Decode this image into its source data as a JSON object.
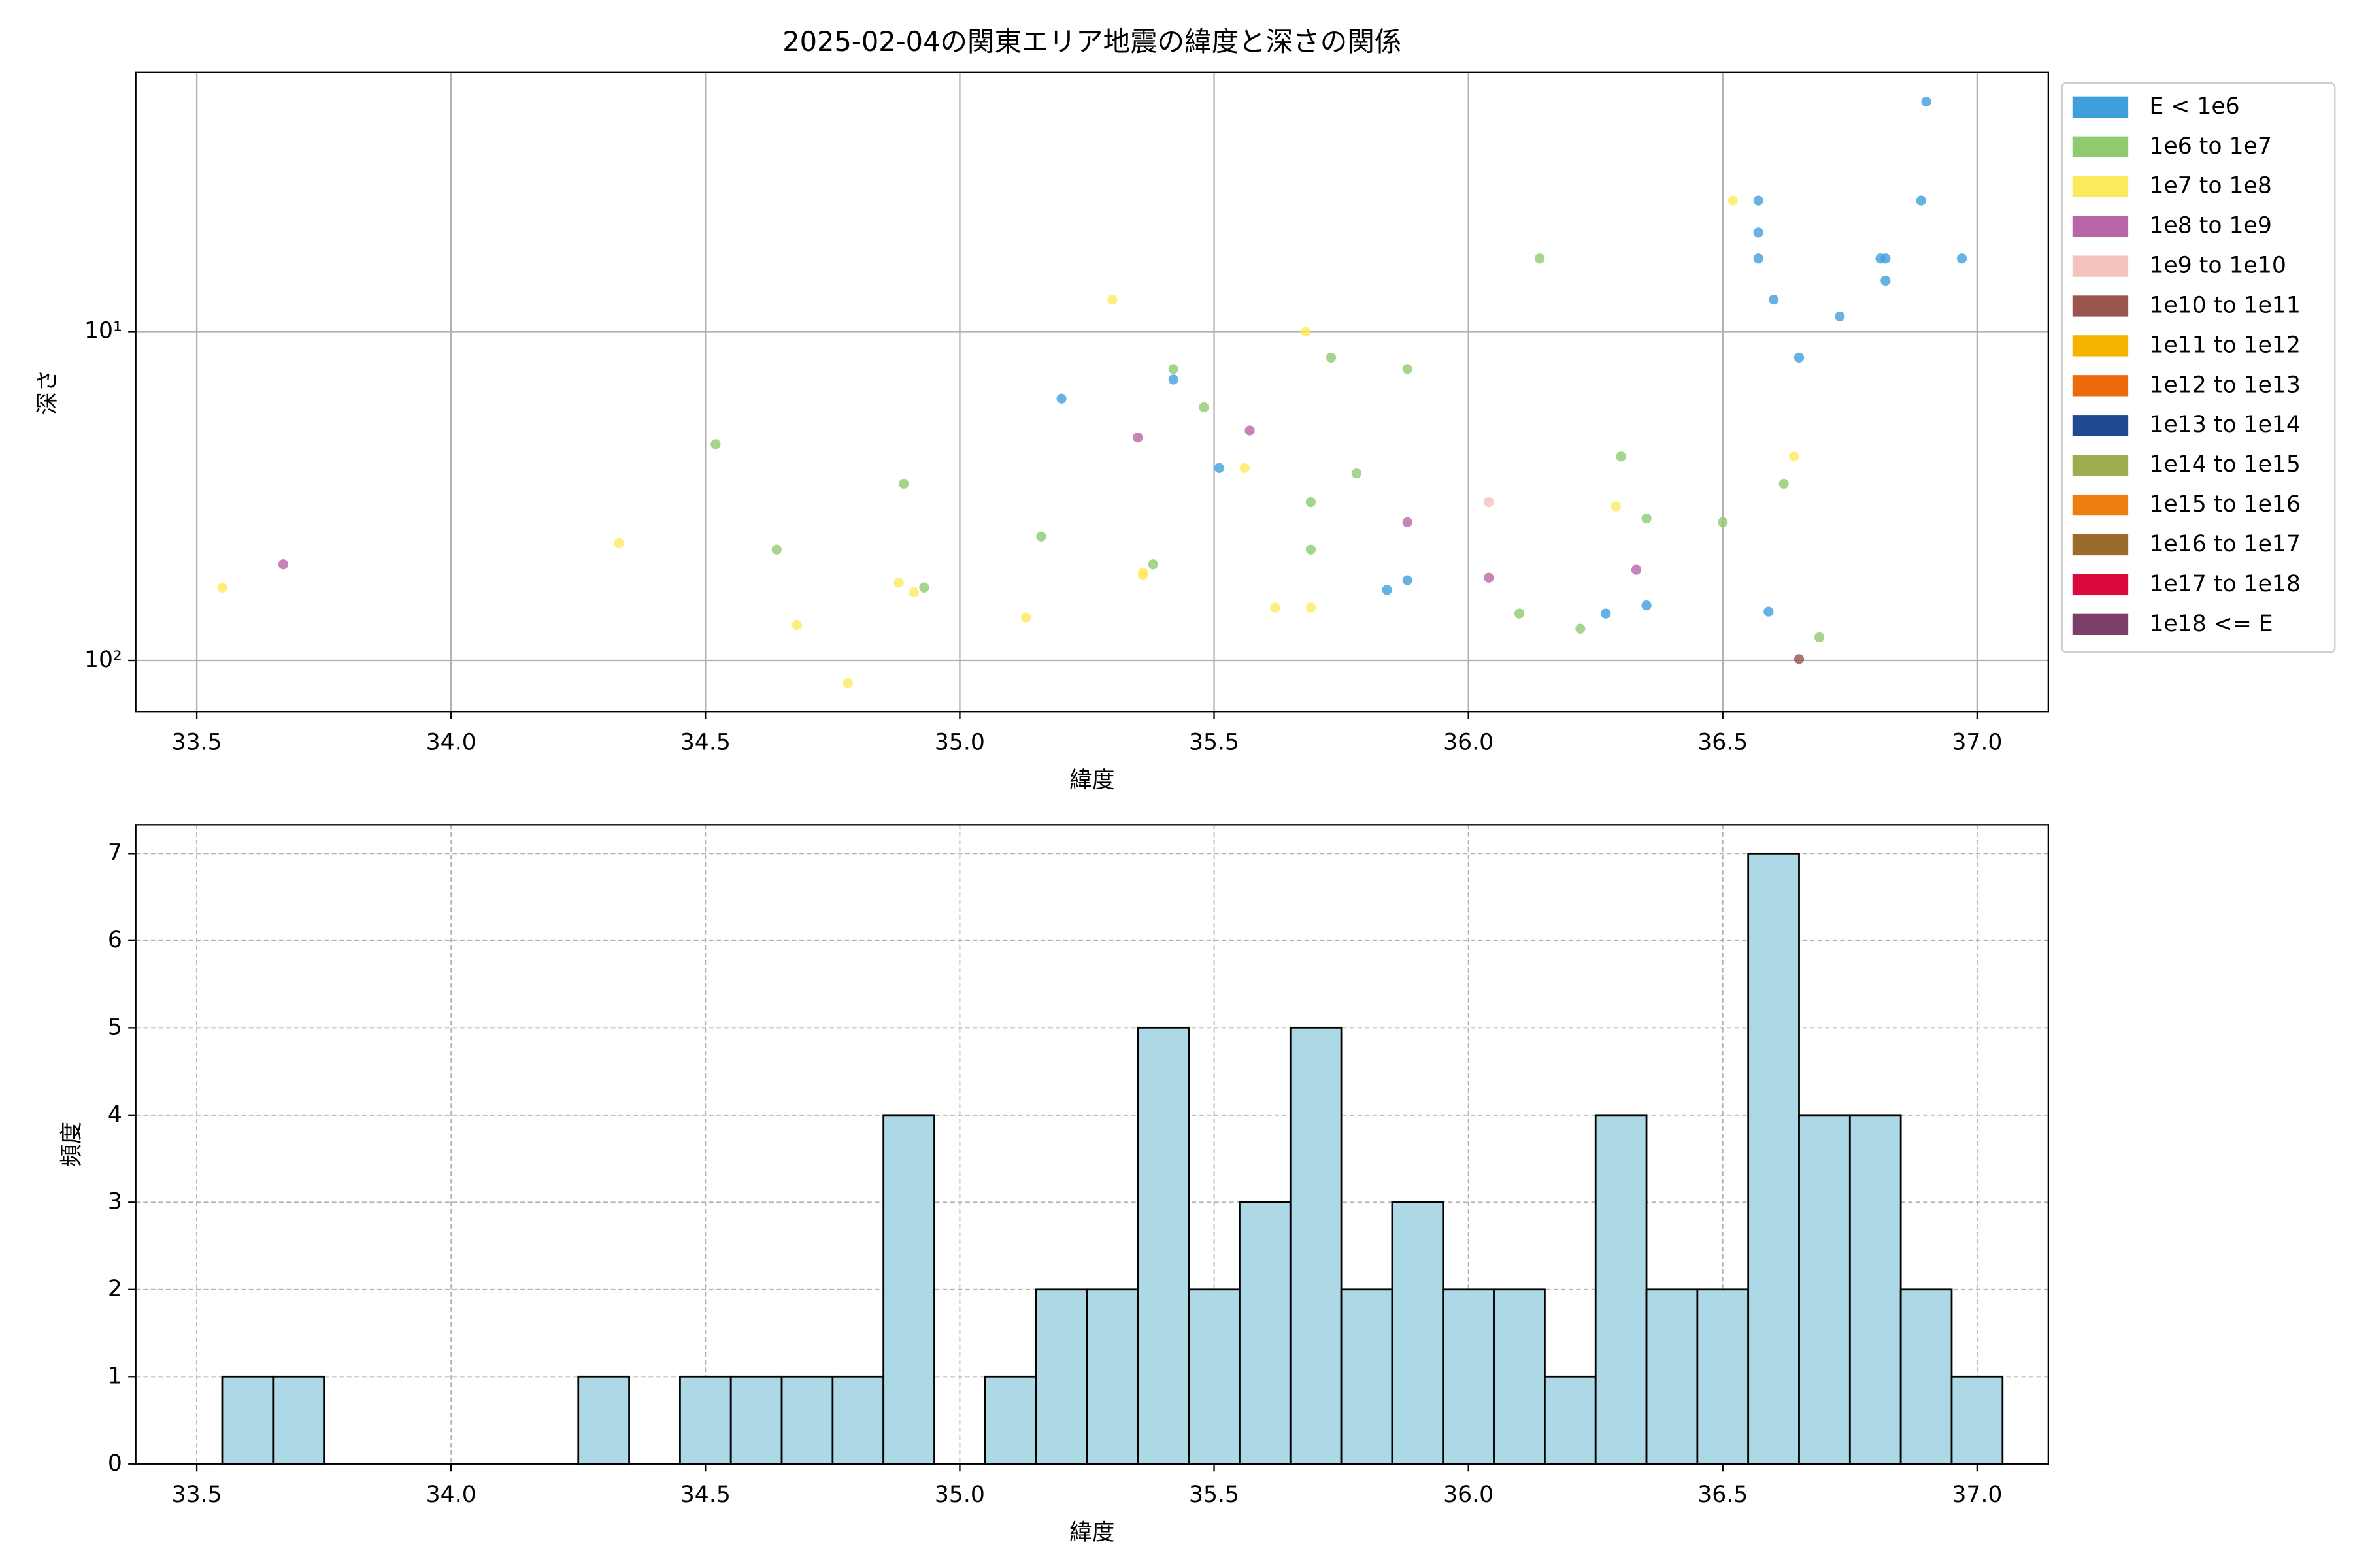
{
  "chart_data": [
    {
      "type": "scatter",
      "title": "2025-02-04の関東エリア地震の緯度と深さの関係",
      "xlabel": "緯度",
      "ylabel": "深さ",
      "yscale": "log",
      "grid": "solid",
      "legend": "outside-right",
      "xlim": [
        33.38,
        37.14
      ],
      "ylim": [
        143,
        1.63
      ],
      "xticks": [
        33.5,
        {
          "value": 34,
          "label": "34.0"
        },
        34.5,
        {
          "value": 35,
          "label": "35.0"
        },
        35.5,
        {
          "value": 36,
          "label": "36.0"
        },
        36.5,
        {
          "value": 37,
          "label": "37.0"
        }
      ],
      "yticks": [
        {
          "value": 10,
          "label": "10¹"
        },
        {
          "value": 100,
          "label": "10²"
        }
      ],
      "series": [
        {
          "name": "E < 1e6",
          "color": "#3e9fdc",
          "x": [
            36.9,
            36.57,
            36.89,
            36.57,
            36.57,
            36.81,
            36.82,
            36.97,
            36.82,
            36.6,
            36.73,
            36.65,
            35.42,
            35.2,
            35.51,
            35.84,
            35.88,
            36.27,
            36.35,
            36.59
          ],
          "values": [
            2,
            4,
            4,
            5,
            6,
            6,
            6,
            6,
            7,
            8,
            9,
            12,
            14,
            16,
            26,
            61,
            57,
            72,
            68,
            71
          ]
        },
        {
          "name": "1e6 to 1e7",
          "color": "#8fc970",
          "x": [
            36.14,
            35.42,
            35.73,
            35.88,
            35.48,
            34.52,
            34.89,
            36.3,
            36.62,
            35.78,
            35.69,
            36.35,
            36.5,
            35.16,
            34.64,
            35.69,
            35.38,
            34.93,
            36.1,
            36.22,
            36.69
          ],
          "values": [
            6,
            13,
            12,
            13,
            17,
            22,
            29,
            24,
            29,
            27,
            33,
            37,
            38,
            42,
            46,
            46,
            51,
            60,
            72,
            80,
            85
          ]
        },
        {
          "name": "1e7 to 1e8",
          "color": "#fcea5c",
          "x": [
            36.52,
            35.3,
            35.68,
            35.56,
            36.64,
            36.29,
            34.33,
            33.55,
            35.36,
            35.36,
            34.88,
            34.91,
            34.68,
            35.13,
            35.62,
            35.69,
            34.78
          ],
          "values": [
            4,
            8,
            10,
            26,
            24,
            34,
            44,
            60,
            54,
            55,
            58,
            62,
            78,
            74,
            69,
            69,
            117
          ]
        },
        {
          "name": "1e8 to 1e9",
          "color": "#b767a8",
          "x": [
            33.67,
            35.35,
            35.57,
            35.88,
            36.04,
            36.33
          ],
          "values": [
            51,
            21,
            20,
            38,
            56,
            53
          ]
        },
        {
          "name": "1e9 to 1e10",
          "color": "#f4c2bc",
          "x": [
            36.04
          ],
          "values": [
            33
          ]
        },
        {
          "name": "1e10 to 1e11",
          "color": "#9a544e",
          "x": [
            36.65
          ],
          "values": [
            99
          ]
        },
        {
          "name": "1e11 to 1e12",
          "color": "#f6b200",
          "x": [],
          "values": []
        },
        {
          "name": "1e12 to 1e13",
          "color": "#ee6a0f",
          "x": [],
          "values": []
        },
        {
          "name": "1e13 to 1e14",
          "color": "#1f4a92",
          "x": [],
          "values": []
        },
        {
          "name": "1e14 to 1e15",
          "color": "#9ead50",
          "x": [],
          "values": []
        },
        {
          "name": "1e15 to 1e16",
          "color": "#ef7d11",
          "x": [],
          "values": []
        },
        {
          "name": "1e16 to 1e17",
          "color": "#9a6b2b",
          "x": [],
          "values": []
        },
        {
          "name": "1e17 to 1e18",
          "color": "#dc0a3c",
          "x": [],
          "values": []
        },
        {
          "name": "1e18 <= E",
          "color": "#7a3e68",
          "x": [],
          "values": []
        }
      ]
    },
    {
      "type": "histogram",
      "xlabel": "緯度",
      "ylabel": "頻度",
      "grid": "dashed",
      "color": "#add8e6",
      "edgecolor": "#000000",
      "xlim": [
        33.38,
        37.14
      ],
      "ylim": [
        0,
        7.33
      ],
      "xticks": [
        33.5,
        {
          "value": 34,
          "label": "34.0"
        },
        34.5,
        {
          "value": 35,
          "label": "35.0"
        },
        35.5,
        {
          "value": 36,
          "label": "36.0"
        },
        36.5,
        {
          "value": 37,
          "label": "37.0"
        }
      ],
      "yticks": [
        0,
        1,
        2,
        3,
        4,
        5,
        6,
        7
      ],
      "bins": [
        33.55,
        33.65,
        33.75,
        33.85,
        33.95,
        34.05,
        34.15,
        34.25,
        34.35,
        34.45,
        34.55,
        34.65,
        34.75,
        34.85,
        34.95,
        35.05,
        35.15,
        35.25,
        35.35,
        35.45,
        35.55,
        35.65,
        35.75,
        35.85,
        35.95,
        36.05,
        36.15,
        36.25,
        36.35,
        36.45,
        36.55,
        36.65,
        36.75,
        36.85,
        36.95,
        37.05
      ],
      "values": [
        1,
        1,
        0,
        0,
        0,
        0,
        0,
        1,
        0,
        1,
        1,
        1,
        1,
        4,
        0,
        1,
        2,
        2,
        5,
        2,
        3,
        5,
        2,
        3,
        2,
        2,
        1,
        4,
        2,
        2,
        7,
        4,
        4,
        2,
        1
      ]
    }
  ]
}
